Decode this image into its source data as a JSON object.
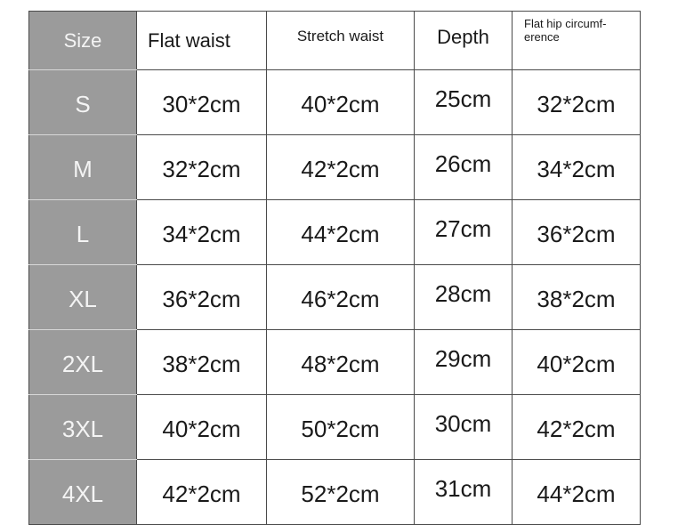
{
  "headers": [
    "Size",
    "Flat waist",
    "Stretch waist",
    "Depth",
    "Flat hip circumf-\nerence"
  ],
  "header_hip_line1": "Flat hip circumf-",
  "header_hip_line2": "erence",
  "rows": [
    [
      "S",
      "30*2cm",
      "40*2cm",
      "25cm",
      "32*2cm"
    ],
    [
      "M",
      "32*2cm",
      "42*2cm",
      "26cm",
      "34*2cm"
    ],
    [
      "L",
      "34*2cm",
      "44*2cm",
      "27cm",
      "36*2cm"
    ],
    [
      "XL",
      "36*2cm",
      "46*2cm",
      "28cm",
      "38*2cm"
    ],
    [
      "2XL",
      "38*2cm",
      "48*2cm",
      "29cm",
      "40*2cm"
    ],
    [
      "3XL",
      "40*2cm",
      "50*2cm",
      "30cm",
      "42*2cm"
    ],
    [
      "4XL",
      "42*2cm",
      "52*2cm",
      "31cm",
      "44*2cm"
    ]
  ],
  "colors": {
    "size_column_bg": "#9b9b9b",
    "border": "#4a4a4a"
  }
}
